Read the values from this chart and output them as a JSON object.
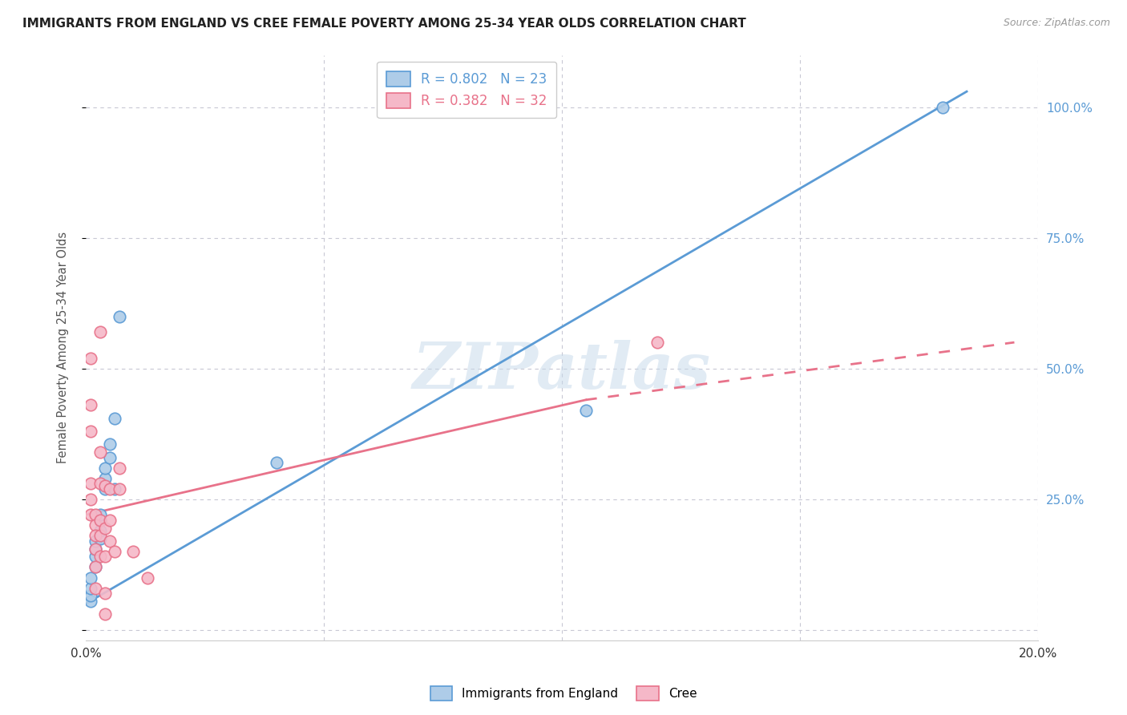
{
  "title": "IMMIGRANTS FROM ENGLAND VS CREE FEMALE POVERTY AMONG 25-34 YEAR OLDS CORRELATION CHART",
  "source": "Source: ZipAtlas.com",
  "ylabel": "Female Poverty Among 25-34 Year Olds",
  "xlim": [
    0.0,
    0.2
  ],
  "ylim": [
    -0.02,
    1.1
  ],
  "yticks": [
    0.0,
    0.25,
    0.5,
    0.75,
    1.0
  ],
  "ytick_labels": [
    "",
    "25.0%",
    "50.0%",
    "75.0%",
    "100.0%"
  ],
  "xticks": [
    0.0,
    0.05,
    0.1,
    0.15,
    0.2
  ],
  "xtick_labels": [
    "0.0%",
    "",
    "",
    "",
    "20.0%"
  ],
  "legend_entries": [
    {
      "label": "R = 0.802   N = 23",
      "color": "#5b9bd5"
    },
    {
      "label": "R = 0.382   N = 32",
      "color": "#e8728a"
    }
  ],
  "england_scatter": [
    [
      0.001,
      0.055
    ],
    [
      0.001,
      0.065
    ],
    [
      0.001,
      0.08
    ],
    [
      0.001,
      0.1
    ],
    [
      0.002,
      0.12
    ],
    [
      0.002,
      0.14
    ],
    [
      0.002,
      0.155
    ],
    [
      0.002,
      0.17
    ],
    [
      0.003,
      0.175
    ],
    [
      0.003,
      0.19
    ],
    [
      0.003,
      0.21
    ],
    [
      0.003,
      0.22
    ],
    [
      0.004,
      0.27
    ],
    [
      0.004,
      0.29
    ],
    [
      0.004,
      0.31
    ],
    [
      0.005,
      0.33
    ],
    [
      0.005,
      0.355
    ],
    [
      0.006,
      0.27
    ],
    [
      0.006,
      0.405
    ],
    [
      0.007,
      0.6
    ],
    [
      0.04,
      0.32
    ],
    [
      0.105,
      0.42
    ],
    [
      0.18,
      1.0
    ]
  ],
  "cree_scatter": [
    [
      0.001,
      0.52
    ],
    [
      0.001,
      0.43
    ],
    [
      0.001,
      0.38
    ],
    [
      0.001,
      0.28
    ],
    [
      0.001,
      0.25
    ],
    [
      0.001,
      0.22
    ],
    [
      0.002,
      0.22
    ],
    [
      0.002,
      0.2
    ],
    [
      0.002,
      0.18
    ],
    [
      0.002,
      0.155
    ],
    [
      0.002,
      0.12
    ],
    [
      0.002,
      0.08
    ],
    [
      0.003,
      0.57
    ],
    [
      0.003,
      0.34
    ],
    [
      0.003,
      0.28
    ],
    [
      0.003,
      0.21
    ],
    [
      0.003,
      0.18
    ],
    [
      0.003,
      0.14
    ],
    [
      0.004,
      0.275
    ],
    [
      0.004,
      0.195
    ],
    [
      0.004,
      0.14
    ],
    [
      0.004,
      0.07
    ],
    [
      0.004,
      0.03
    ],
    [
      0.005,
      0.27
    ],
    [
      0.005,
      0.21
    ],
    [
      0.005,
      0.17
    ],
    [
      0.006,
      0.15
    ],
    [
      0.007,
      0.31
    ],
    [
      0.007,
      0.27
    ],
    [
      0.01,
      0.15
    ],
    [
      0.013,
      0.1
    ],
    [
      0.12,
      0.55
    ]
  ],
  "england_line": {
    "x0": 0.0,
    "y0": 0.05,
    "x1": 0.185,
    "y1": 1.03
  },
  "cree_line_solid": {
    "x0": 0.0,
    "y0": 0.22,
    "x1": 0.105,
    "y1": 0.44
  },
  "cree_line_dash": {
    "x0": 0.105,
    "y0": 0.44,
    "x1": 0.195,
    "y1": 0.55
  },
  "england_line_color": "#5b9bd5",
  "cree_line_color": "#e8728a",
  "england_dot_facecolor": "#aecce8",
  "england_dot_edgecolor": "#5b9bd5",
  "cree_dot_facecolor": "#f5b8c8",
  "cree_dot_edgecolor": "#e8728a",
  "background_color": "#ffffff",
  "grid_color": "#c8c8d4",
  "watermark": "ZIPatlas",
  "watermark_color": "#c5d8ea"
}
